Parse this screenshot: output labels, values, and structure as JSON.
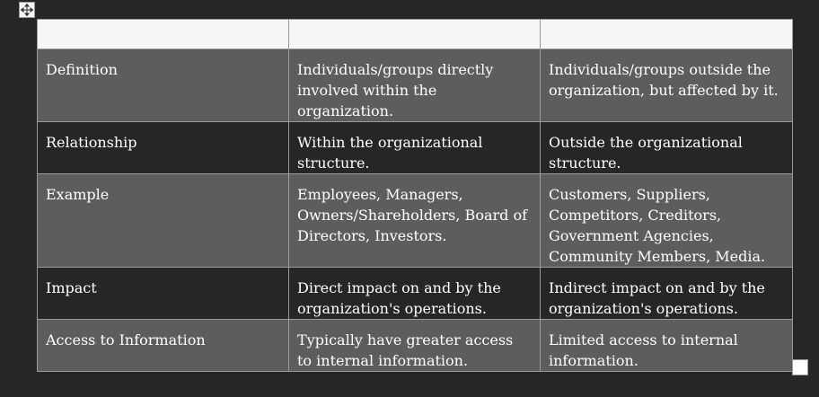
{
  "header": [
    "",
    "",
    ""
  ],
  "rows": [
    {
      "label": "Definition",
      "internal": "Individuals/groups directly involved within the organization.",
      "external": "Individuals/groups outside the organization, but affected by it."
    },
    {
      "label": "Relationship",
      "internal": "Within the organizational structure.",
      "external": "Outside the organizational structure."
    },
    {
      "label": "Example",
      "internal": "Employees, Managers, Owners/Shareholders, Board of Directors, Investors.",
      "external": "Customers, Suppliers, Competitors, Creditors, Government Agencies, Community Members, Media."
    },
    {
      "label": "Impact",
      "internal": "Direct impact on and by the organization's operations.",
      "external": "Indirect impact on and by the organization's operations."
    },
    {
      "label": "Access to Information",
      "internal": "Typically have greater access to internal information.",
      "external": "Limited access to internal information."
    }
  ],
  "icons": {
    "move_handle": "move-arrows-icon",
    "resize_handle": "resize-square-icon"
  },
  "colors": {
    "background": "#262626",
    "row_light": "#5d5d5d",
    "row_dark": "#262626",
    "header": "#f6f6f6",
    "border": "#9a9a9a",
    "text": "#ffffff"
  }
}
